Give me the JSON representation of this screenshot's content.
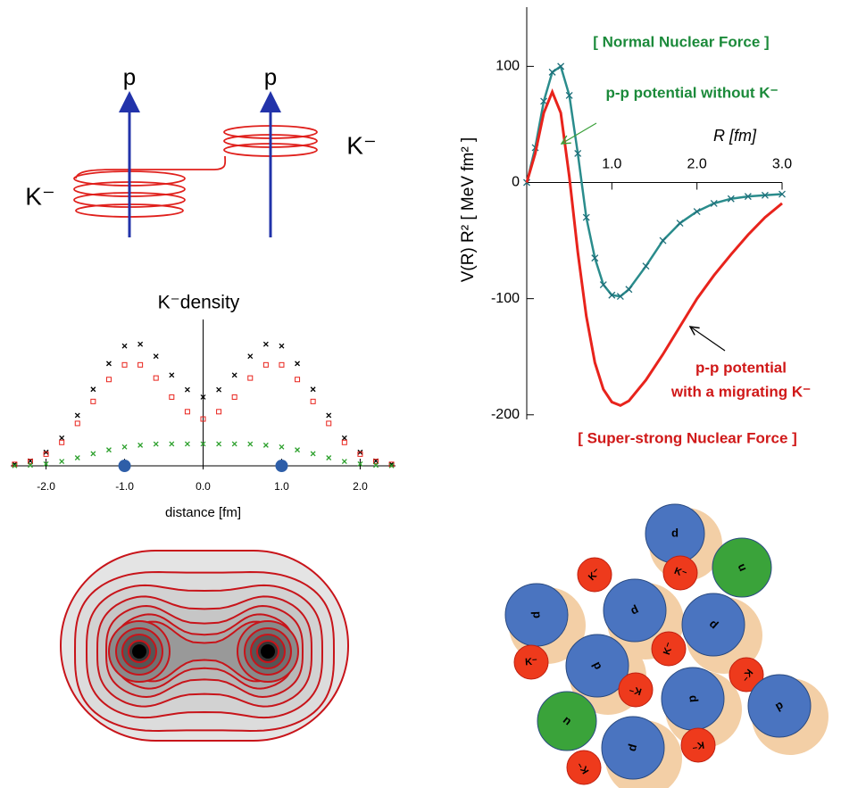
{
  "diagram": {
    "proton_labels": [
      "p",
      "p"
    ],
    "kaon_labels": [
      "K⁻",
      "K⁻"
    ]
  },
  "cluster": {
    "labels": [
      "p",
      "n",
      "K⁻",
      "K⁻",
      "p",
      "p",
      "p",
      "K⁻",
      "K⁻",
      "p",
      "K⁻",
      "K⁻",
      "p",
      "p",
      "n",
      "p",
      "K⁻",
      "K⁻"
    ]
  },
  "chart_data": [
    {
      "type": "scatter",
      "title": "K⁻density",
      "xlabel": "distance  [fm]",
      "x": [
        -2.4,
        -2.2,
        -2.0,
        -1.8,
        -1.6,
        -1.4,
        -1.2,
        -1.0,
        -0.8,
        -0.6,
        -0.4,
        -0.2,
        0,
        0.2,
        0.4,
        0.6,
        0.8,
        1.0,
        1.2,
        1.4,
        1.6,
        1.8,
        2.0,
        2.2,
        2.4
      ],
      "xlim": [
        -2.45,
        2.45
      ],
      "ylim": [
        0,
        1
      ],
      "xticks": [
        {
          "value": -2,
          "label": "-2.0"
        },
        {
          "value": -1,
          "label": "-1.0"
        },
        {
          "value": 0,
          "label": "0.0"
        },
        {
          "value": 1,
          "label": "1.0"
        },
        {
          "value": 2,
          "label": "2.0"
        }
      ],
      "series": [
        {
          "color": "#000000",
          "marker": "x",
          "values": [
            0.011,
            0.034,
            0.093,
            0.19,
            0.345,
            0.523,
            0.699,
            0.819,
            0.831,
            0.749,
            0.62,
            0.52,
            0.47,
            0.52,
            0.62,
            0.749,
            0.831,
            0.819,
            0.699,
            0.523,
            0.345,
            0.19,
            0.093,
            0.034,
            0.011
          ]
        },
        {
          "color": "#e8231c",
          "marker": "square",
          "values": [
            0.01,
            0.03,
            0.08,
            0.16,
            0.29,
            0.44,
            0.59,
            0.69,
            0.69,
            0.6,
            0.47,
            0.37,
            0.32,
            0.37,
            0.47,
            0.6,
            0.69,
            0.69,
            0.59,
            0.44,
            0.29,
            0.16,
            0.08,
            0.03,
            0.01
          ]
        },
        {
          "color": "#2ca02c",
          "marker": "x",
          "values": [
            0.001,
            0.004,
            0.013,
            0.03,
            0.055,
            0.083,
            0.109,
            0.129,
            0.141,
            0.149,
            0.15,
            0.15,
            0.15,
            0.15,
            0.15,
            0.149,
            0.141,
            0.129,
            0.109,
            0.083,
            0.055,
            0.03,
            0.013,
            0.004,
            0.001
          ]
        }
      ],
      "markers": {
        "x": [
          -1,
          1
        ],
        "color": "#2e5ea8"
      }
    },
    {
      "type": "line",
      "xlabel": "R  [fm]",
      "ylabel": "V(R) R²   [ MeV fm² ]",
      "x": [
        0,
        0.1,
        0.2,
        0.3,
        0.4,
        0.5,
        0.6,
        0.7,
        0.8,
        0.9,
        1.0,
        1.1,
        1.2,
        1.4,
        1.6,
        1.8,
        2.0,
        2.2,
        2.4,
        2.6,
        2.8,
        3.0
      ],
      "xlim": [
        0,
        3
      ],
      "ylim": [
        -204,
        151
      ],
      "xticks": [
        {
          "value": 1,
          "label": "1.0"
        },
        {
          "value": 2,
          "label": "2.0"
        },
        {
          "value": 3,
          "label": "3.0"
        }
      ],
      "yticks": [
        -200,
        -100,
        0,
        100
      ],
      "series": [
        {
          "color": "#2a8c8c",
          "marker": "x",
          "values": [
            0,
            30,
            70,
            95,
            100,
            75,
            25,
            -30,
            -65,
            -88,
            -97,
            -98,
            -92,
            -72,
            -50,
            -35,
            -25,
            -18,
            -14,
            -12,
            -11,
            -10
          ]
        },
        {
          "color": "#e8231c",
          "marker": "none",
          "values": [
            0,
            25,
            60,
            78,
            60,
            5,
            -60,
            -115,
            -155,
            -178,
            -189,
            -192,
            -188,
            -170,
            -148,
            -124,
            -100,
            -80,
            -62,
            -45,
            -30,
            -18
          ]
        }
      ],
      "annotations": [
        "[ Normal Nuclear Force ]",
        "p-p potential without K⁻",
        "p-p potential",
        "with a migrating K⁻",
        "[ Super-strong Nuclear Force ]"
      ]
    }
  ]
}
